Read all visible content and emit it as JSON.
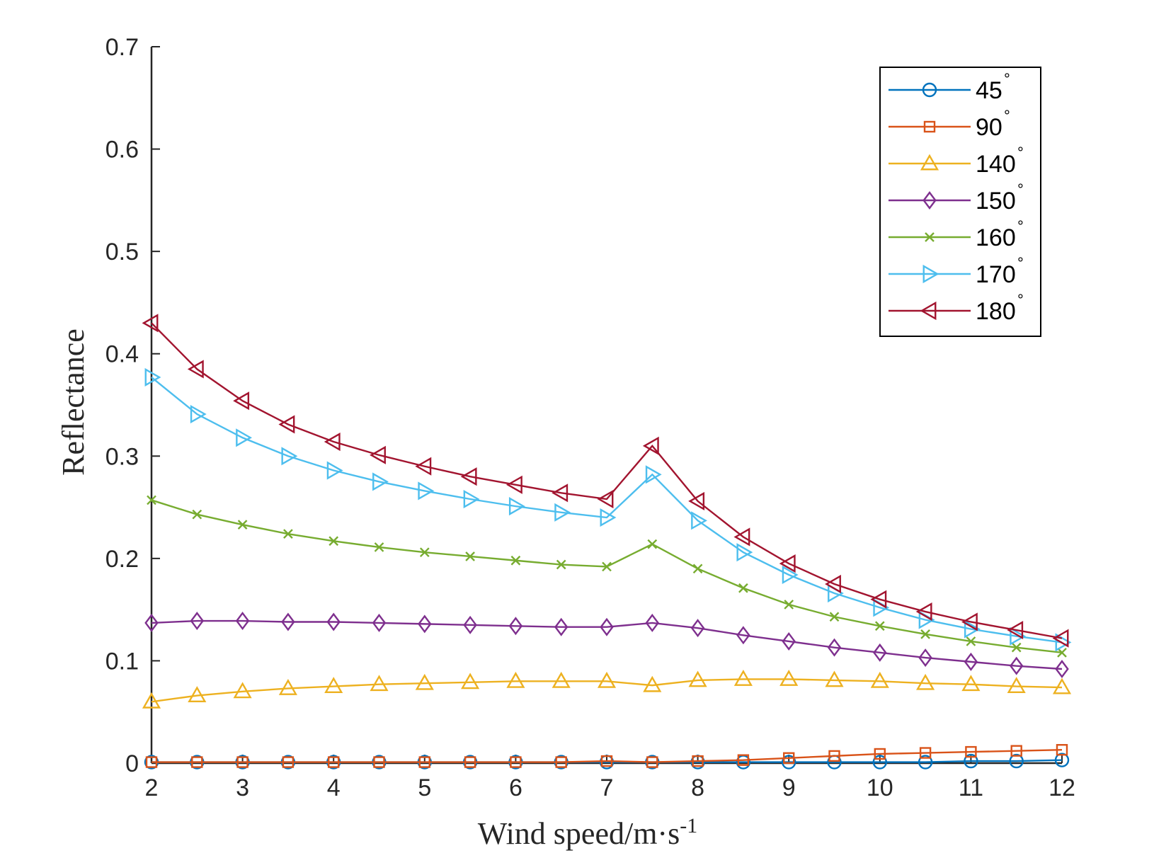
{
  "chart_data": {
    "type": "line",
    "xlabel": "Wind speed/m·s",
    "xlabel_superscript": "-1",
    "ylabel": "Reflectance",
    "xlim": [
      2,
      12
    ],
    "ylim": [
      0,
      0.7
    ],
    "x_ticks": [
      "2",
      "3",
      "4",
      "5",
      "6",
      "7",
      "8",
      "9",
      "10",
      "11",
      "12"
    ],
    "y_ticks": [
      "0",
      "0.1",
      "0.2",
      "0.3",
      "0.4",
      "0.5",
      "0.6",
      "0.7"
    ],
    "grid": false,
    "legend_placement": "top-right",
    "x": [
      2,
      2.5,
      3,
      3.5,
      4,
      4.5,
      5,
      5.5,
      6,
      6.5,
      7,
      7.5,
      8,
      8.5,
      9,
      9.5,
      10,
      10.5,
      11,
      11.5,
      12
    ],
    "series": [
      {
        "name": "45",
        "unit": "°",
        "color": "#0072BD",
        "marker": "circle",
        "values": [
          0.001,
          0.001,
          0.001,
          0.001,
          0.001,
          0.001,
          0.001,
          0.001,
          0.001,
          0.001,
          0.001,
          0.001,
          0.001,
          0.001,
          0.001,
          0.001,
          0.001,
          0.001,
          0.002,
          0.002,
          0.003
        ]
      },
      {
        "name": "90",
        "unit": "°",
        "color": "#D95319",
        "marker": "square",
        "values": [
          0.001,
          0.001,
          0.001,
          0.001,
          0.001,
          0.001,
          0.001,
          0.001,
          0.001,
          0.001,
          0.002,
          0.001,
          0.002,
          0.003,
          0.005,
          0.007,
          0.009,
          0.01,
          0.011,
          0.012,
          0.013
        ]
      },
      {
        "name": "140",
        "unit": "°",
        "color": "#EDB120",
        "marker": "triangle-up",
        "values": [
          0.06,
          0.066,
          0.07,
          0.073,
          0.075,
          0.077,
          0.078,
          0.079,
          0.08,
          0.08,
          0.08,
          0.076,
          0.081,
          0.082,
          0.082,
          0.081,
          0.08,
          0.078,
          0.077,
          0.075,
          0.074
        ]
      },
      {
        "name": "150",
        "unit": "°",
        "color": "#7E2F8E",
        "marker": "diamond",
        "values": [
          0.137,
          0.139,
          0.139,
          0.138,
          0.138,
          0.137,
          0.136,
          0.135,
          0.134,
          0.133,
          0.133,
          0.137,
          0.132,
          0.125,
          0.119,
          0.113,
          0.108,
          0.103,
          0.099,
          0.095,
          0.092
        ]
      },
      {
        "name": "160",
        "unit": "°",
        "color": "#77AC30",
        "marker": "x",
        "values": [
          0.257,
          0.243,
          0.233,
          0.224,
          0.217,
          0.211,
          0.206,
          0.202,
          0.198,
          0.194,
          0.192,
          0.214,
          0.19,
          0.171,
          0.155,
          0.143,
          0.134,
          0.126,
          0.119,
          0.113,
          0.108
        ]
      },
      {
        "name": "170",
        "unit": "°",
        "color": "#4DBEEE",
        "marker": "triangle-right",
        "values": [
          0.377,
          0.341,
          0.318,
          0.3,
          0.286,
          0.275,
          0.266,
          0.258,
          0.251,
          0.245,
          0.24,
          0.282,
          0.237,
          0.206,
          0.184,
          0.166,
          0.152,
          0.14,
          0.131,
          0.124,
          0.118
        ]
      },
      {
        "name": "180",
        "unit": "°",
        "color": "#A2142F",
        "marker": "triangle-left",
        "values": [
          0.43,
          0.385,
          0.354,
          0.331,
          0.314,
          0.301,
          0.29,
          0.28,
          0.272,
          0.264,
          0.258,
          0.31,
          0.256,
          0.221,
          0.195,
          0.175,
          0.16,
          0.148,
          0.138,
          0.13,
          0.122
        ]
      }
    ]
  }
}
